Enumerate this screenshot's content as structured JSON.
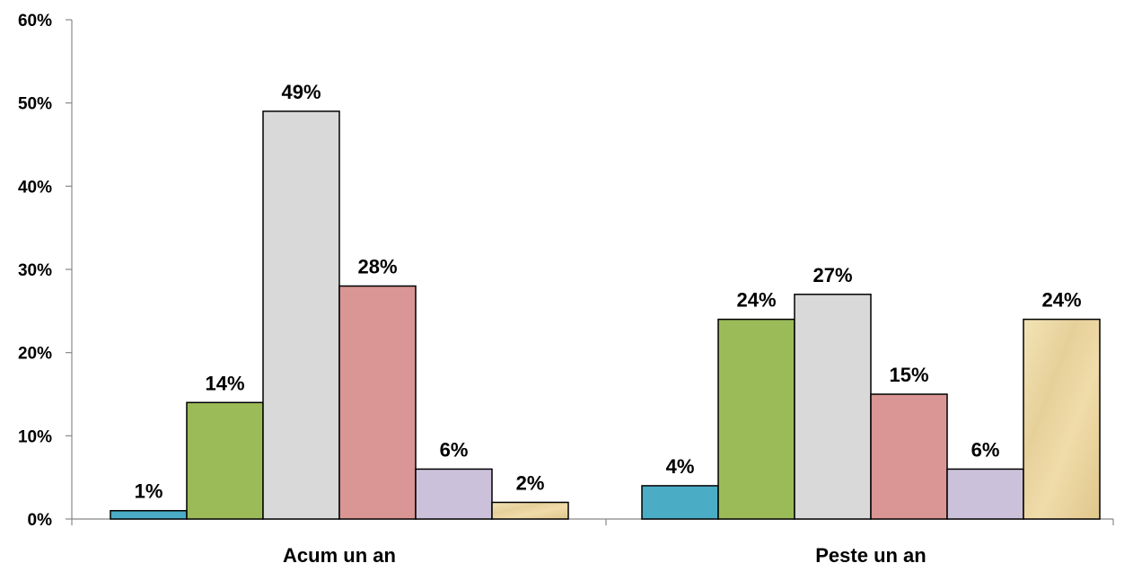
{
  "chart_data": {
    "type": "bar",
    "categories": [
      "Acum un an",
      "Peste un an"
    ],
    "series": [
      {
        "values": [
          1,
          4
        ],
        "labels": [
          "1%",
          "4%"
        ],
        "color": "#4bacc6"
      },
      {
        "values": [
          14,
          24
        ],
        "labels": [
          "14%",
          "24%"
        ],
        "color": "#9bbb59"
      },
      {
        "values": [
          49,
          27
        ],
        "labels": [
          "49%",
          "27%"
        ],
        "color": "#d9d9d9"
      },
      {
        "values": [
          28,
          15
        ],
        "labels": [
          "28%",
          "15%"
        ],
        "color": "#d99694"
      },
      {
        "values": [
          6,
          6
        ],
        "labels": [
          "6%",
          "6%"
        ],
        "color": "#ccc1da"
      },
      {
        "values": [
          2,
          24
        ],
        "labels": [
          "2%",
          "24%"
        ],
        "color": "#eedcaa",
        "pattern": "parchment"
      }
    ],
    "y_ticks": [
      "0%",
      "10%",
      "20%",
      "30%",
      "40%",
      "50%",
      "60%"
    ],
    "ylim": [
      0,
      60
    ],
    "grid": false,
    "legend": "none"
  }
}
